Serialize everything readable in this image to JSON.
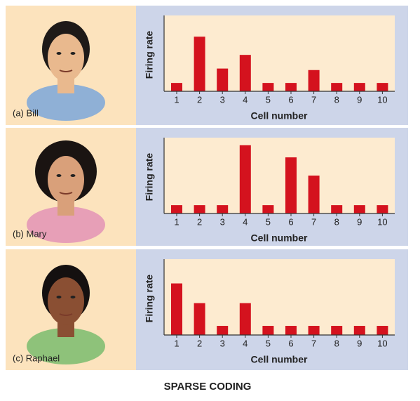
{
  "caption": "SPARSE CODING",
  "chart_data": [
    {
      "type": "bar",
      "label": "(a) Bill",
      "ylabel": "Firing rate",
      "xlabel": "Cell number",
      "categories": [
        "1",
        "2",
        "3",
        "4",
        "5",
        "6",
        "7",
        "8",
        "9",
        "10"
      ],
      "values": [
        1.1,
        7.2,
        3,
        4.8,
        1.1,
        1.1,
        2.8,
        1.1,
        1.1,
        1.1
      ],
      "color": "#d4121e",
      "ylim": [
        0,
        10
      ]
    },
    {
      "type": "bar",
      "label": "(b) Mary",
      "ylabel": "Firing rate",
      "xlabel": "Cell number",
      "categories": [
        "1",
        "2",
        "3",
        "4",
        "5",
        "6",
        "7",
        "8",
        "9",
        "10"
      ],
      "values": [
        1.1,
        1.1,
        1.1,
        9,
        1.1,
        7.4,
        5,
        1.1,
        1.1,
        1.1
      ],
      "color": "#d4121e",
      "ylim": [
        0,
        10
      ]
    },
    {
      "type": "bar",
      "label": "(c) Raphael",
      "ylabel": "Firing rate",
      "xlabel": "Cell number",
      "categories": [
        "1",
        "2",
        "3",
        "4",
        "5",
        "6",
        "7",
        "8",
        "9",
        "10"
      ],
      "values": [
        6.8,
        4.2,
        1.2,
        4.2,
        1.2,
        1.2,
        1.2,
        1.2,
        1.2,
        1.2
      ],
      "color": "#d4121e",
      "ylim": [
        0,
        10
      ]
    }
  ]
}
